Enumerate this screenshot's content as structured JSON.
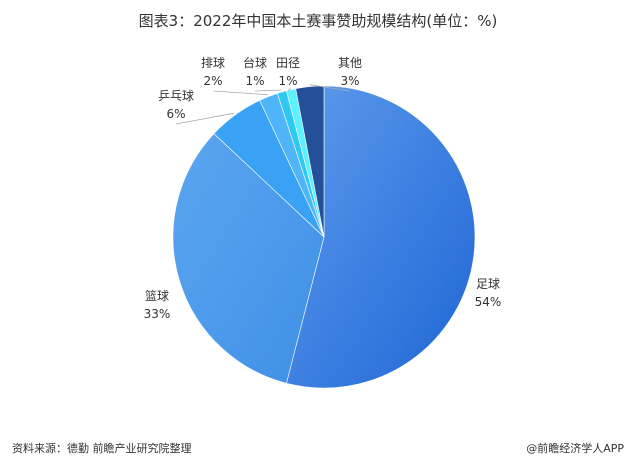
{
  "chart_data": {
    "type": "pie",
    "title": "图表3：2022年中国本土赛事赞助规模结构(单位：%)",
    "unit": "%",
    "slices": [
      {
        "name": "足球",
        "value": 54,
        "label": "54%",
        "color": "#2F78DF"
      },
      {
        "name": "篮球",
        "value": 33,
        "label": "33%",
        "color": "#4A9AEF"
      },
      {
        "name": "乒乓球",
        "value": 6,
        "label": "6%",
        "color": "#3AA2F5"
      },
      {
        "name": "排球",
        "value": 2,
        "label": "2%",
        "color": "#50B4F8"
      },
      {
        "name": "台球",
        "value": 1,
        "label": "1%",
        "color": "#2EC9F2"
      },
      {
        "name": "田径",
        "value": 1,
        "label": "1%",
        "color": "#5FF0FF"
      },
      {
        "name": "其他",
        "value": 3,
        "label": "3%",
        "color": "#24509A"
      }
    ]
  },
  "footer": {
    "source": "资料来源：德勤 前瞻产业研究院整理",
    "brand": "@前瞻经济学人APP"
  }
}
